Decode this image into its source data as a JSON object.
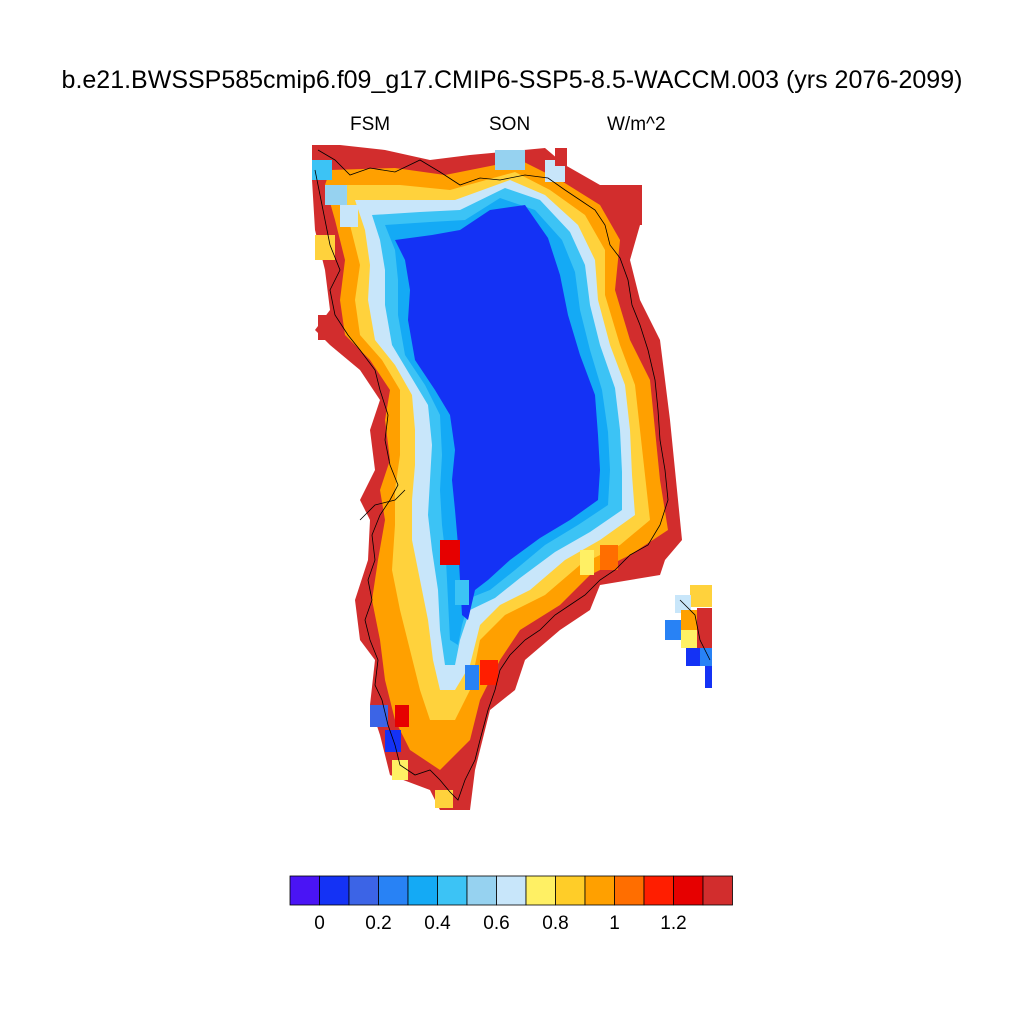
{
  "title": "b.e21.BWSSP585cmip6.f09_g17.CMIP6-SSP5-8.5-WACCM.003 (yrs 2076-2099)",
  "left_string": "FSM",
  "center_string": "SON",
  "right_string": "W/m^2",
  "colorbar": {
    "colors": [
      "#4a14f5",
      "#1432f5",
      "#3c64e6",
      "#2882f5",
      "#14aaf5",
      "#3cc3f5",
      "#96d2f0",
      "#c8e6fa",
      "#fff064",
      "#ffcd28",
      "#ffa000",
      "#ff6e00",
      "#ff1e00",
      "#e60000",
      "#d22d2d"
    ],
    "tick_labels": [
      "0",
      "0.2",
      "0.4",
      "0.6",
      "0.8",
      "1",
      "1.2"
    ]
  }
}
